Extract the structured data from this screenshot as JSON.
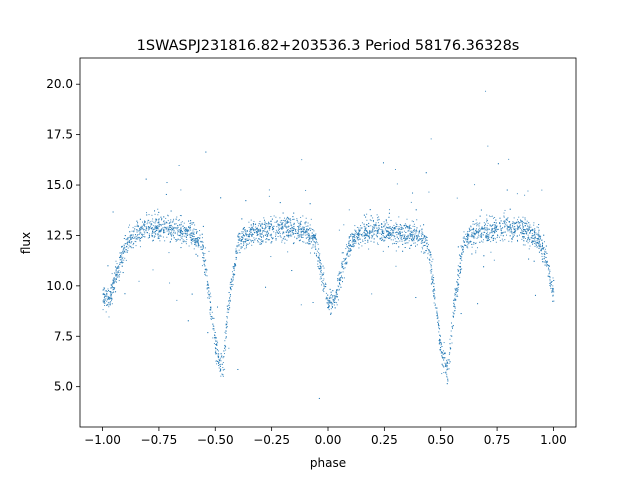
{
  "chart_data": {
    "type": "scatter",
    "title": "1SWASPJ231816.82+203536.3 Period 58176.36328s",
    "xlabel": "phase",
    "ylabel": "flux",
    "xlim": [
      -1.1,
      1.1
    ],
    "ylim": [
      3.0,
      21.3
    ],
    "x_ticks": [
      -1.0,
      -0.75,
      -0.5,
      -0.25,
      0.0,
      0.25,
      0.5,
      0.75,
      1.0
    ],
    "x_tick_labels": [
      "−1.00",
      "−0.75",
      "−0.50",
      "−0.25",
      "0.00",
      "0.25",
      "0.50",
      "0.75",
      "1.00"
    ],
    "y_ticks": [
      5.0,
      7.5,
      10.0,
      12.5,
      15.0,
      17.5,
      20.0
    ],
    "y_tick_labels": [
      "5.0",
      "7.5",
      "10.0",
      "12.5",
      "15.0",
      "17.5",
      "20.0"
    ],
    "grid": false,
    "marker_color": "#1f77b4",
    "series": [
      {
        "phase_fold_profile": {
          "x": [
            -1.0,
            -0.97,
            -0.94,
            -0.9,
            -0.87,
            -0.8,
            -0.7,
            -0.6,
            -0.56,
            -0.53,
            -0.5,
            -0.47,
            -0.44,
            -0.4,
            -0.37,
            -0.3,
            -0.2,
            -0.1,
            -0.06,
            -0.03,
            0.0,
            0.03,
            0.06,
            0.1,
            0.13,
            0.2,
            0.3,
            0.4,
            0.44,
            0.47,
            0.5,
            0.53,
            0.56,
            0.6,
            0.63,
            0.7,
            0.8,
            0.9,
            0.94,
            0.97,
            1.0
          ],
          "y": [
            9.6,
            9.4,
            10.6,
            12.0,
            12.5,
            12.9,
            12.8,
            12.6,
            12.1,
            9.6,
            6.9,
            5.8,
            9.3,
            12.2,
            12.5,
            12.7,
            12.9,
            12.7,
            12.3,
            10.6,
            9.2,
            9.4,
            10.8,
            12.1,
            12.5,
            12.8,
            12.7,
            12.5,
            12.1,
            9.6,
            6.9,
            5.8,
            9.3,
            12.2,
            12.5,
            12.7,
            12.9,
            12.6,
            12.2,
            11.2,
            9.6
          ]
        }
      }
    ]
  }
}
